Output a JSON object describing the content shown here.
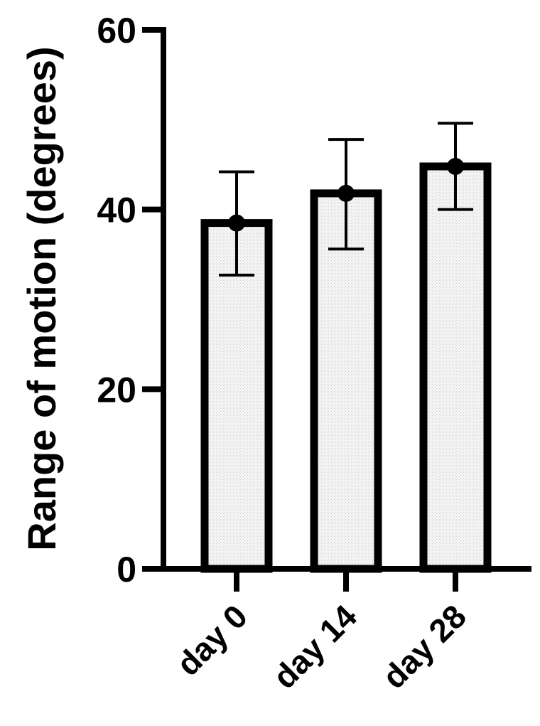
{
  "chart_data": {
    "type": "bar",
    "title": "",
    "xlabel": "",
    "ylabel": "Range of motion (degrees)",
    "ylim": [
      0,
      60
    ],
    "yticks": [
      0,
      20,
      40,
      60
    ],
    "categories": [
      "day 0",
      "day 14",
      "day 28"
    ],
    "series": [
      {
        "values": [
          38.5,
          41.8,
          44.8
        ],
        "error_low": [
          32.7,
          35.6,
          40.0
        ],
        "error_high": [
          44.2,
          47.8,
          49.6
        ]
      }
    ],
    "grid": false,
    "legend": "none",
    "colors": {
      "bar_fill": "#efefef",
      "bar_stroke": "#000000",
      "axis": "#000000",
      "point": "#000000"
    }
  }
}
